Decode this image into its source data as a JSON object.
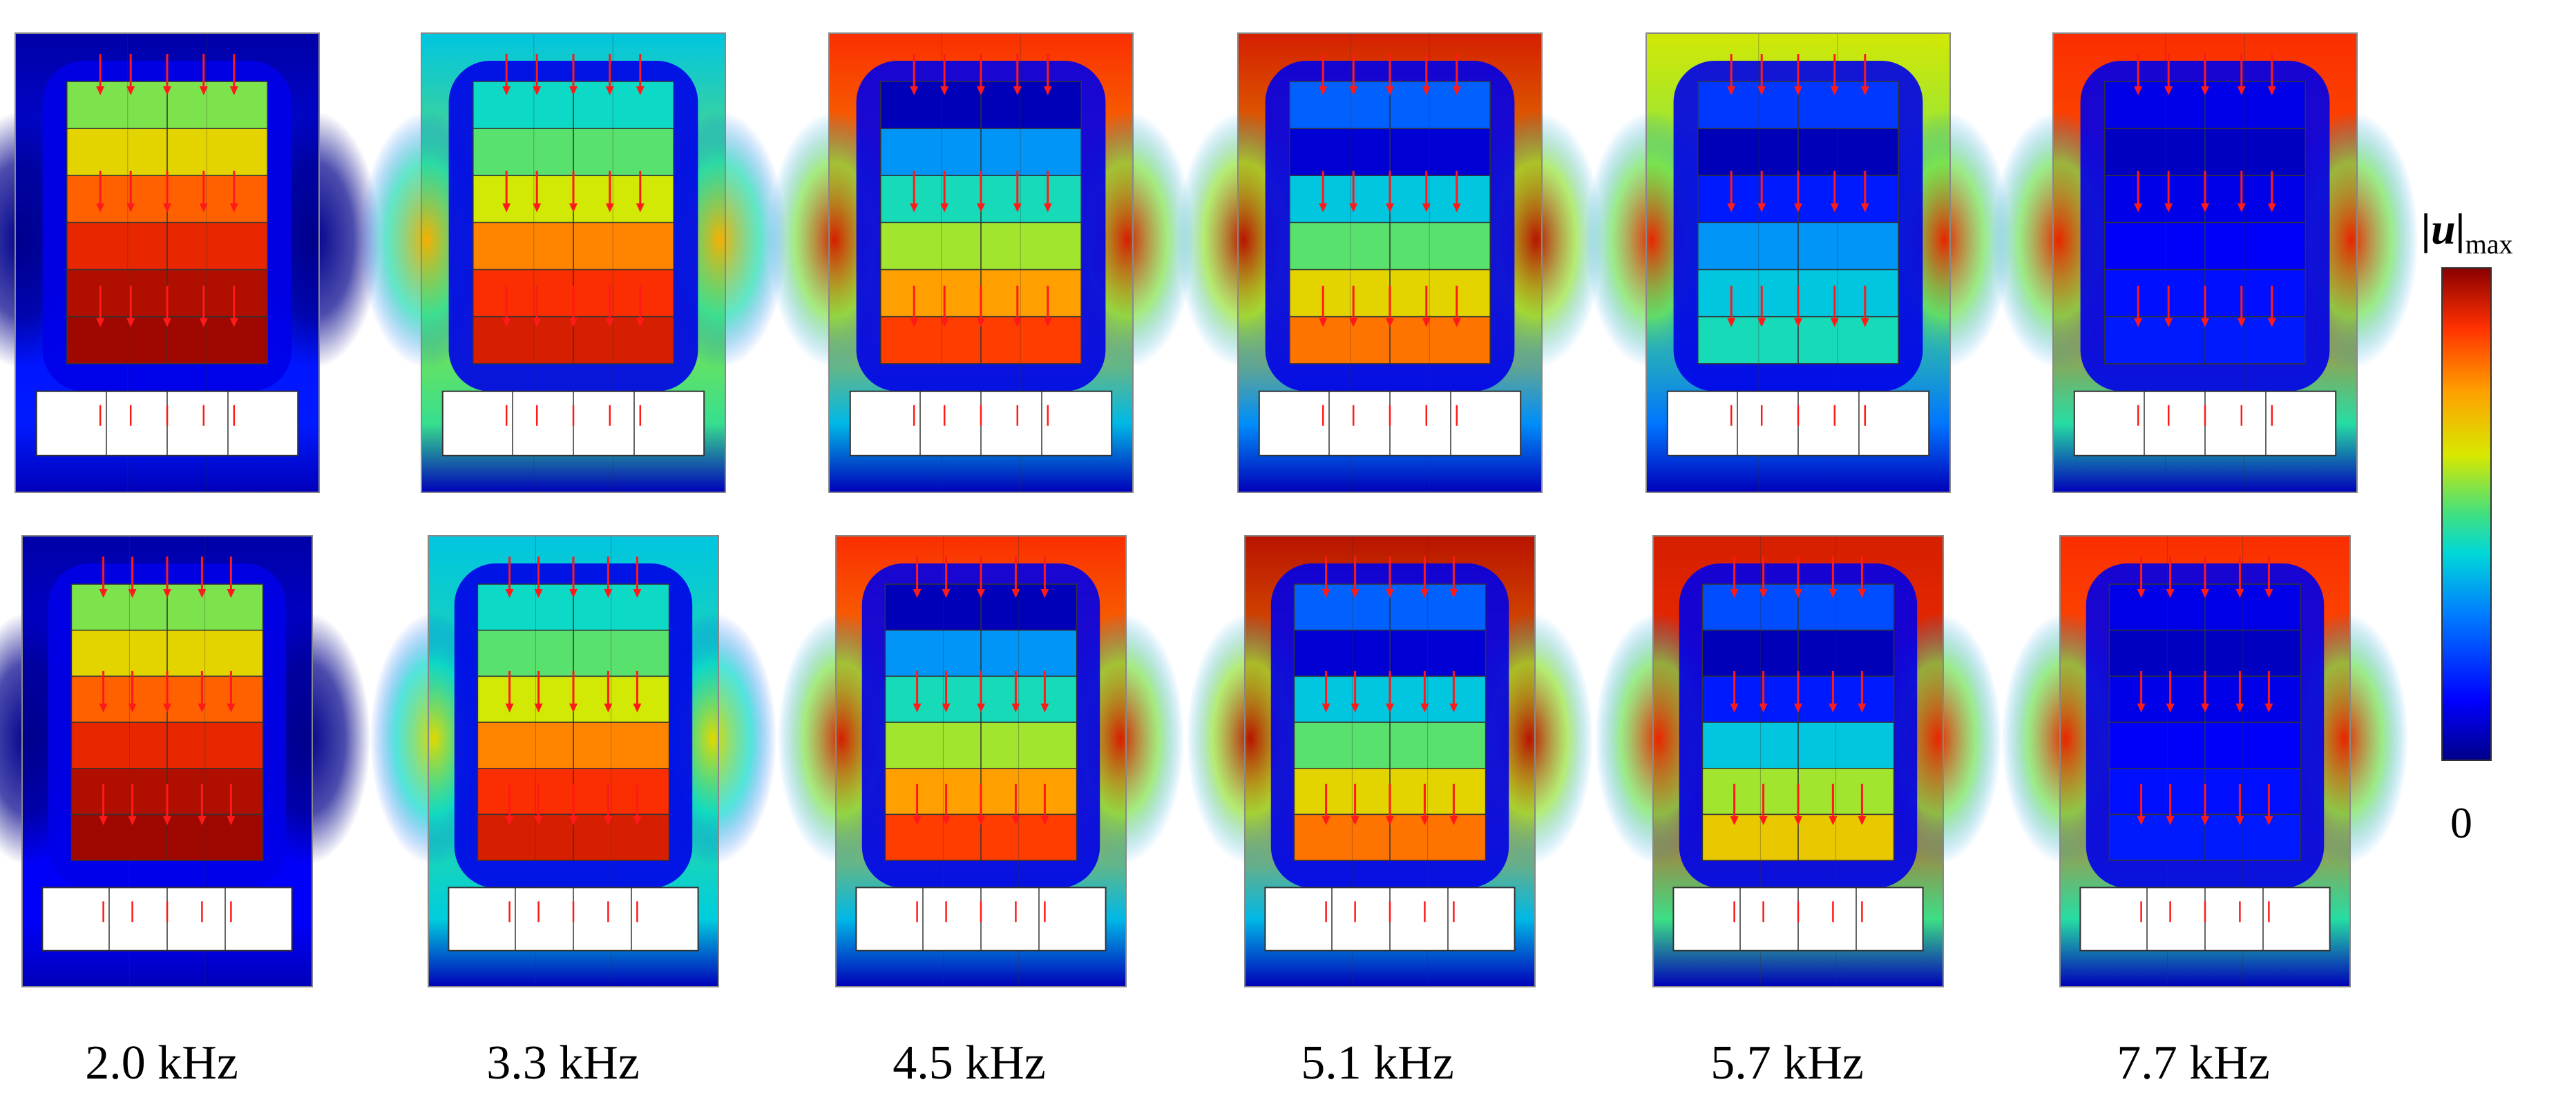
{
  "labels": [
    "2.0 kHz",
    "3.3 kHz",
    "4.5 kHz",
    "5.1 kHz",
    "5.7 kHz",
    "7.7 kHz"
  ],
  "colorbar": {
    "title_symbol": "|u|",
    "title_subscript": "max",
    "min_label": "0",
    "colors": [
      "#00008b",
      "#0000ff",
      "#0080ff",
      "#00d8d8",
      "#40e080",
      "#d8e800",
      "#ffa000",
      "#ff3000",
      "#8b0000"
    ]
  },
  "colors": {
    "arrow": "#ff1a1a",
    "grid": "#333333",
    "magnet": "#ffffff"
  },
  "panel_rows": [
    "top",
    "bottom"
  ],
  "modes": [
    {
      "freq": "2.0 kHz",
      "top": {
        "bg": [
          0.03,
          0.25
        ],
        "strips": [
          0.55,
          0.66,
          0.82,
          0.9,
          0.96,
          0.98
        ],
        "corner": 0
      },
      "bottom": {
        "bg": [
          0.03,
          0.2
        ],
        "strips": [
          0.55,
          0.66,
          0.82,
          0.9,
          0.96,
          0.98
        ],
        "corner": 0
      }
    },
    {
      "freq": "3.3 kHz",
      "top": {
        "bg": [
          0.35,
          0.8
        ],
        "strips": [
          0.4,
          0.52,
          0.62,
          0.78,
          0.88,
          0.92
        ],
        "corner": 0.72
      },
      "bottom": {
        "bg": [
          0.35,
          0.6
        ],
        "strips": [
          0.4,
          0.52,
          0.62,
          0.78,
          0.88,
          0.92
        ],
        "corner": 0.65
      }
    },
    {
      "freq": "4.5 kHz",
      "top": {
        "bg": [
          0.88,
          0.55
        ],
        "strips": [
          0.05,
          0.28,
          0.42,
          0.58,
          0.75,
          0.86
        ],
        "corner": 0.92
      },
      "bottom": {
        "bg": [
          0.88,
          0.55
        ],
        "strips": [
          0.05,
          0.28,
          0.42,
          0.58,
          0.75,
          0.86
        ],
        "corner": 0.92
      }
    },
    {
      "freq": "5.1 kHz",
      "top": {
        "bg": [
          0.92,
          0.45
        ],
        "strips": [
          0.22,
          0.08,
          0.35,
          0.52,
          0.66,
          0.8
        ],
        "corner": 0.95
      },
      "bottom": {
        "bg": [
          0.95,
          0.55
        ],
        "strips": [
          0.22,
          0.08,
          0.35,
          0.52,
          0.66,
          0.8
        ],
        "corner": 0.95
      }
    },
    {
      "freq": "5.7 kHz",
      "top": {
        "bg": [
          0.62,
          0.4
        ],
        "strips": [
          0.18,
          0.05,
          0.15,
          0.28,
          0.35,
          0.42
        ],
        "corner": 0.9
      },
      "bottom": {
        "bg": [
          0.92,
          0.82
        ],
        "strips": [
          0.2,
          0.05,
          0.15,
          0.35,
          0.58,
          0.68
        ],
        "corner": 0.9
      }
    },
    {
      "freq": "7.7 kHz",
      "top": {
        "bg": [
          0.88,
          0.75
        ],
        "strips": [
          0.1,
          0.06,
          0.1,
          0.12,
          0.14,
          0.15
        ],
        "corner": 0.9
      },
      "bottom": {
        "bg": [
          0.88,
          0.75
        ],
        "strips": [
          0.1,
          0.06,
          0.1,
          0.12,
          0.14,
          0.15
        ],
        "corner": 0.9
      }
    }
  ]
}
